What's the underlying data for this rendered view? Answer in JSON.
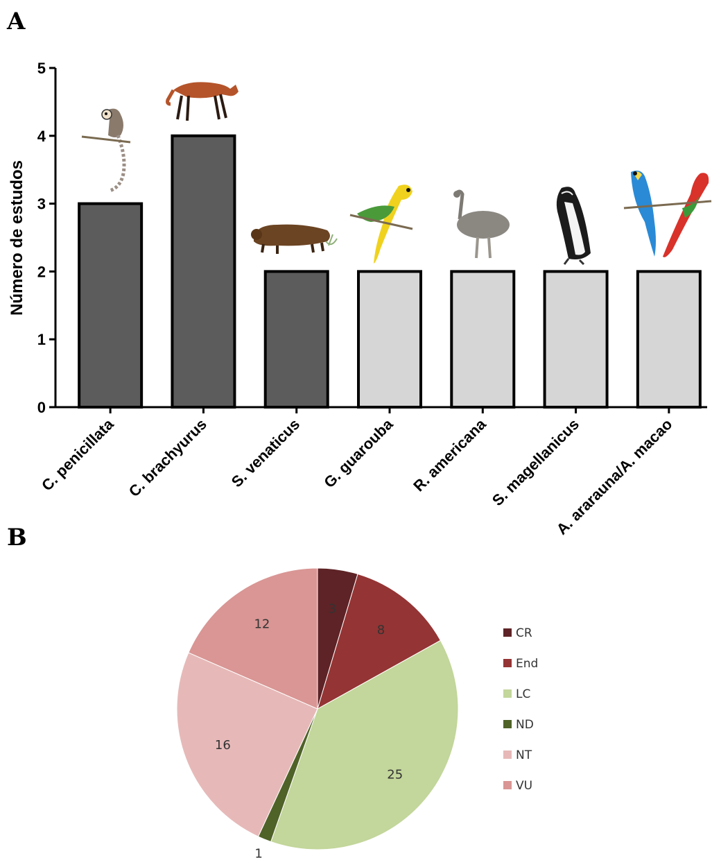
{
  "panels": {
    "a_label": "A",
    "b_label": "B"
  },
  "chart_data": [
    {
      "type": "bar",
      "ylabel": "Número de estudos",
      "ylim": [
        0,
        5
      ],
      "yticks": [
        "0",
        "1",
        "2",
        "3",
        "4",
        "5"
      ],
      "categories": [
        "C. penicillata",
        "C. brachyurus",
        "S. venaticus",
        "G. guarouba",
        "R. americana",
        "S. magellanicus",
        "A. ararauna/A. macao"
      ],
      "values": [
        3,
        4,
        2,
        2,
        2,
        2,
        2
      ],
      "bar_colors": [
        "#5c5c5c",
        "#5c5c5c",
        "#5c5c5c",
        "#d6d6d6",
        "#d6d6d6",
        "#d6d6d6",
        "#d6d6d6"
      ],
      "grid": false
    },
    {
      "type": "pie",
      "slices": [
        {
          "label": "CR",
          "value": 3,
          "display": "3",
          "color": "#5e2326"
        },
        {
          "label": "End",
          "value": 8,
          "display": "8",
          "color": "#943434"
        },
        {
          "label": "LC",
          "value": 25,
          "display": "25",
          "color": "#c3d69b"
        },
        {
          "label": "ND",
          "value": 1,
          "display": "1",
          "color": "#4f6228"
        },
        {
          "label": "NT",
          "value": 16,
          "display": "16",
          "color": "#e6b9b8"
        },
        {
          "label": "VU",
          "value": 12,
          "display": "12",
          "color": "#d99694"
        }
      ],
      "legend_position": "right"
    }
  ]
}
